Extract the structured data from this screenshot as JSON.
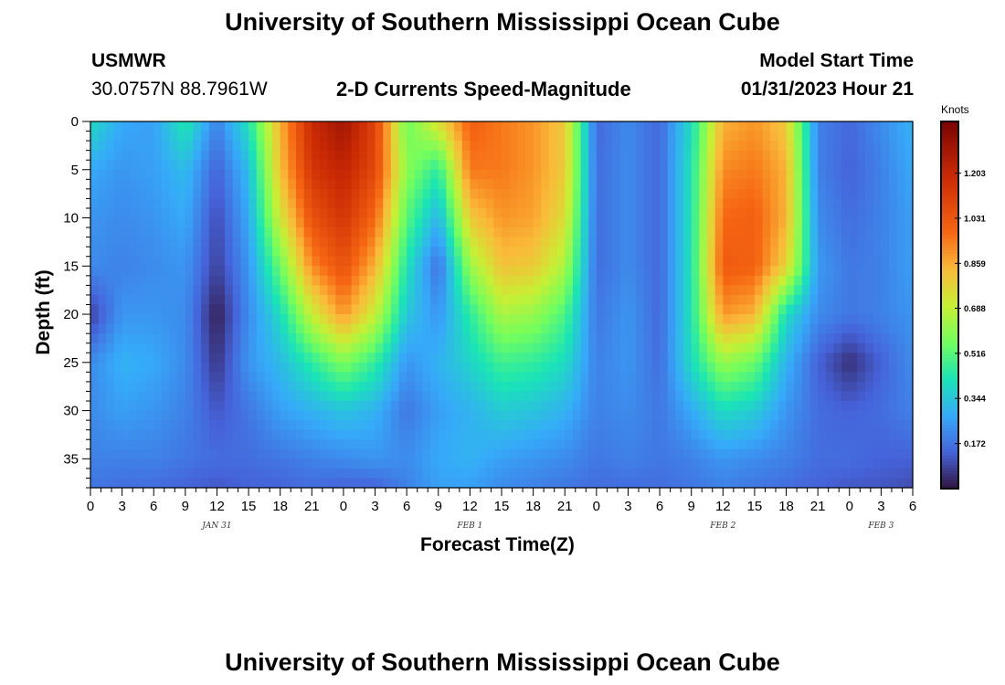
{
  "header": {
    "main_title": "University of Southern Mississippi Ocean Cube",
    "station": "USMWR",
    "coords": "30.0757N  88.7961W",
    "plot_title": "2-D Currents Speed-Magnitude",
    "model_label": "Model Start Time",
    "model_time": "01/31/2023 Hour 21"
  },
  "footer": {
    "main_title": "University of Southern Mississippi Ocean Cube"
  },
  "colors": {
    "low": "#30123b",
    "blue": "#4686f7",
    "cyan": "#1ae4b6",
    "green": "#a2fc3c",
    "yellow": "#fbb938",
    "orange": "#e4460a",
    "dark_red": "#7a0403"
  },
  "chart_data": {
    "type": "heatmap",
    "title": "2-D Currents Speed-Magnitude",
    "xlabel": "Forecast Time(Z)",
    "ylabel": "Depth (ft)",
    "x_unit": "hours since 01/31 00Z",
    "x_range": [
      0,
      78
    ],
    "x_ticks": [
      0,
      3,
      6,
      9,
      12,
      15,
      18,
      21,
      24,
      27,
      30,
      33,
      36,
      39,
      42,
      45,
      48,
      51,
      54,
      57,
      60,
      63,
      66,
      69,
      72,
      75,
      78
    ],
    "x_tick_labels": [
      "0",
      "3",
      "6",
      "9",
      "12",
      "15",
      "18",
      "21",
      "0",
      "3",
      "6",
      "9",
      "12",
      "15",
      "18",
      "21",
      "0",
      "3",
      "6",
      "9",
      "12",
      "15",
      "18",
      "21",
      "0",
      "3",
      "6"
    ],
    "date_labels": [
      {
        "x": 12,
        "label": "JAN 31"
      },
      {
        "x": 36,
        "label": "FEB 1"
      },
      {
        "x": 60,
        "label": "FEB 2"
      },
      {
        "x": 75,
        "label": "FEB 3"
      }
    ],
    "y_range": [
      0,
      38
    ],
    "y_ticks": [
      0,
      5,
      10,
      15,
      20,
      25,
      30,
      35
    ],
    "y_tick_labels": [
      "0",
      "5",
      "10",
      "15",
      "20",
      "25",
      "30",
      "35"
    ],
    "colorbar": {
      "title": "Knots",
      "range": [
        0.0,
        1.4
      ],
      "tick_values": [
        0.172,
        0.344,
        0.516,
        0.688,
        0.859,
        1.031,
        1.203
      ],
      "tick_labels": [
        "0.172",
        "0.344",
        "0.516",
        "0.688",
        "0.859",
        "1.031",
        "1.203"
      ]
    },
    "grid_times": [
      0,
      3,
      6,
      9,
      12,
      15,
      18,
      21,
      24,
      27,
      30,
      33,
      36,
      39,
      42,
      45,
      48,
      51,
      54,
      57,
      60,
      63,
      66,
      69,
      72,
      75,
      78
    ],
    "grid_depths": [
      0,
      5,
      10,
      15,
      20,
      25,
      30,
      35,
      38
    ],
    "values": [
      [
        0.4,
        0.28,
        0.26,
        0.44,
        0.2,
        0.42,
        0.85,
        1.2,
        1.3,
        1.1,
        0.55,
        0.75,
        1.0,
        0.95,
        0.9,
        0.8,
        0.15,
        0.22,
        0.15,
        0.4,
        0.85,
        0.9,
        0.8,
        0.2,
        0.15,
        0.22,
        0.3
      ],
      [
        0.28,
        0.24,
        0.26,
        0.32,
        0.14,
        0.32,
        0.82,
        1.15,
        1.22,
        1.08,
        0.6,
        0.45,
        0.95,
        0.95,
        0.9,
        0.8,
        0.16,
        0.22,
        0.15,
        0.42,
        0.92,
        0.95,
        0.85,
        0.2,
        0.14,
        0.2,
        0.28
      ],
      [
        0.24,
        0.22,
        0.24,
        0.28,
        0.1,
        0.28,
        0.72,
        1.05,
        1.15,
        0.98,
        0.52,
        0.3,
        0.8,
        0.9,
        0.88,
        0.75,
        0.16,
        0.22,
        0.15,
        0.42,
        0.98,
        1.0,
        0.85,
        0.22,
        0.16,
        0.2,
        0.26
      ],
      [
        0.22,
        0.2,
        0.22,
        0.24,
        0.08,
        0.24,
        0.55,
        0.92,
        1.05,
        0.85,
        0.42,
        0.16,
        0.62,
        0.82,
        0.8,
        0.65,
        0.16,
        0.22,
        0.15,
        0.42,
        1.02,
        1.0,
        0.78,
        0.25,
        0.18,
        0.2,
        0.26
      ],
      [
        0.08,
        0.24,
        0.24,
        0.22,
        0.02,
        0.22,
        0.4,
        0.7,
        0.9,
        0.7,
        0.35,
        0.24,
        0.45,
        0.65,
        0.62,
        0.5,
        0.18,
        0.24,
        0.15,
        0.42,
        0.9,
        0.85,
        0.4,
        0.22,
        0.18,
        0.2,
        0.24
      ],
      [
        0.22,
        0.3,
        0.28,
        0.22,
        0.06,
        0.24,
        0.32,
        0.45,
        0.58,
        0.46,
        0.24,
        0.3,
        0.38,
        0.48,
        0.46,
        0.4,
        0.2,
        0.24,
        0.16,
        0.4,
        0.62,
        0.55,
        0.3,
        0.14,
        0.05,
        0.14,
        0.22
      ],
      [
        0.22,
        0.26,
        0.24,
        0.2,
        0.12,
        0.18,
        0.26,
        0.3,
        0.34,
        0.3,
        0.18,
        0.26,
        0.3,
        0.36,
        0.34,
        0.3,
        0.2,
        0.22,
        0.18,
        0.28,
        0.4,
        0.36,
        0.24,
        0.16,
        0.14,
        0.16,
        0.2
      ],
      [
        0.2,
        0.2,
        0.2,
        0.18,
        0.16,
        0.16,
        0.18,
        0.2,
        0.22,
        0.24,
        0.22,
        0.28,
        0.3,
        0.26,
        0.24,
        0.22,
        0.18,
        0.2,
        0.18,
        0.2,
        0.24,
        0.22,
        0.2,
        0.16,
        0.16,
        0.14,
        0.14
      ],
      [
        0.18,
        0.16,
        0.16,
        0.14,
        0.12,
        0.14,
        0.14,
        0.16,
        0.14,
        0.14,
        0.2,
        0.26,
        0.26,
        0.22,
        0.2,
        0.18,
        0.16,
        0.16,
        0.16,
        0.18,
        0.2,
        0.18,
        0.16,
        0.14,
        0.12,
        0.12,
        0.1
      ]
    ]
  }
}
